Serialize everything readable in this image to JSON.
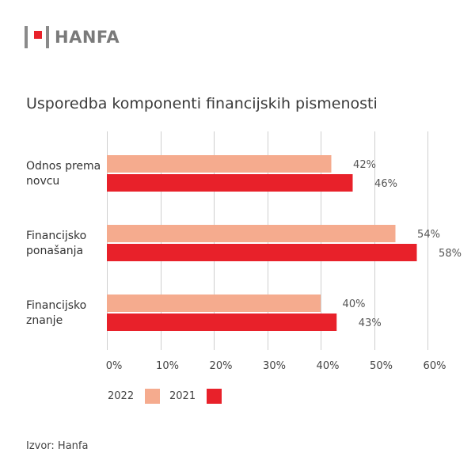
{
  "logo": {
    "text": "HANFA",
    "accent": "#e8212a",
    "gray": "#8a8a8a"
  },
  "source": "Izvor: Hanfa",
  "chart_data": {
    "type": "bar",
    "orientation": "horizontal",
    "title": "Usporedba komponenti financijskih pismenosti",
    "categories": [
      [
        "Odnos prema",
        "novcu"
      ],
      [
        "Financijsko",
        "ponašanja"
      ],
      [
        "Financijsko",
        "znanje"
      ]
    ],
    "series": [
      {
        "name": "2022",
        "values": [
          42,
          54,
          40
        ],
        "color": "#f5ab8e"
      },
      {
        "name": "2021",
        "values": [
          46,
          58,
          43
        ],
        "color": "#e8212a"
      }
    ],
    "value_suffix": "%",
    "xlim": [
      0,
      60
    ],
    "xticks": [
      0,
      10,
      20,
      30,
      40,
      50,
      60
    ],
    "xtick_labels": [
      "0%",
      "10%",
      "20%",
      "30%",
      "40%",
      "50%",
      "60%"
    ],
    "grid": true,
    "legend_position": "bottom-left"
  }
}
